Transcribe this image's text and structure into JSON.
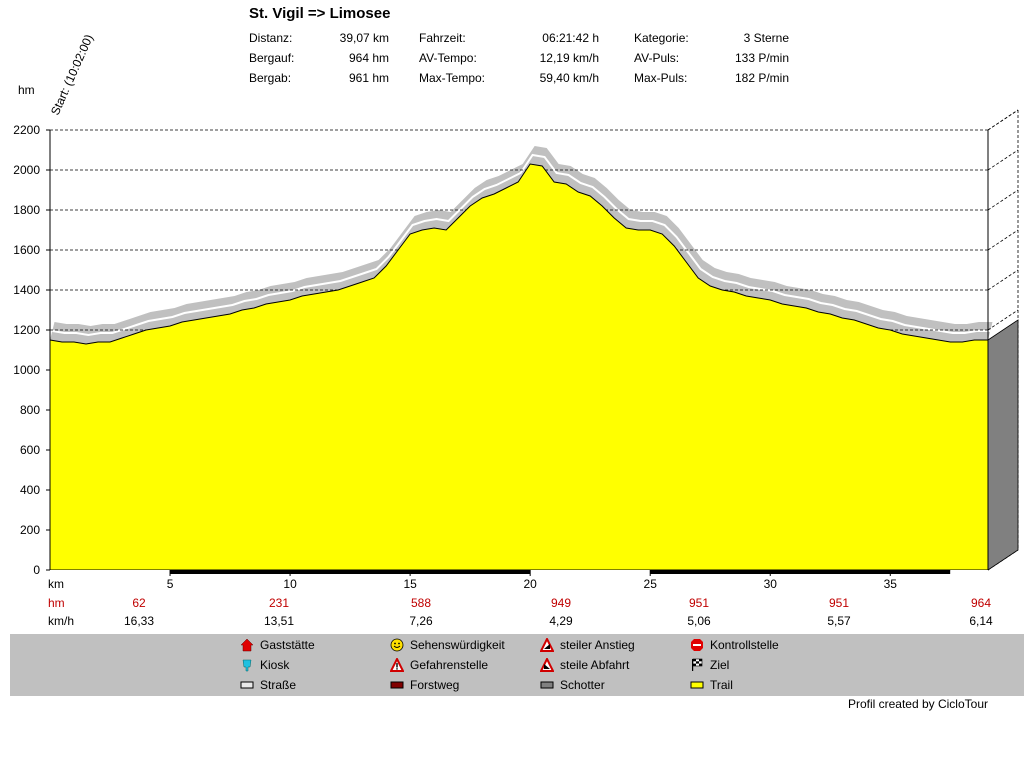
{
  "header": {
    "title": "St. Vigil => Limosee",
    "stats": [
      {
        "label": "Distanz:",
        "value": "39,07 km"
      },
      {
        "label": "Bergauf:",
        "value": "964 hm"
      },
      {
        "label": "Bergab:",
        "value": "961 hm"
      },
      {
        "label": "Fahrzeit:",
        "value": "06:21:42 h"
      },
      {
        "label": "AV-Tempo:",
        "value": "12,19 km/h"
      },
      {
        "label": "Max-Tempo:",
        "value": "59,40 km/h"
      },
      {
        "label": "Kategorie:",
        "value": "3 Sterne"
      },
      {
        "label": "AV-Puls:",
        "value": "133 P/min"
      },
      {
        "label": "Max-Puls:",
        "value": "182 P/min"
      }
    ]
  },
  "chart_data": {
    "type": "area",
    "y_unit_label": "hm",
    "x_unit_label": "km",
    "start_label": "Start: (10:02:00)",
    "ylim": [
      0,
      2200
    ],
    "xlim": [
      0,
      39.07
    ],
    "y_ticks": [
      "0",
      "200",
      "400",
      "600",
      "800",
      "1000",
      "1200",
      "1400",
      "1600",
      "1800",
      "2000",
      "2200"
    ],
    "x_ticks": [
      "5",
      "10",
      "15",
      "20",
      "25",
      "30",
      "35"
    ],
    "grid": true,
    "colors": {
      "trail": "#ffff00",
      "shadow": "#c0c0c0",
      "side": "#808080",
      "track": "#000000"
    },
    "series": [
      {
        "values_x": [
          0,
          0.5,
          1,
          1.5,
          2,
          2.5,
          3,
          3.5,
          4,
          4.5,
          5,
          5.5,
          6,
          6.5,
          7,
          7.5,
          8,
          8.5,
          9,
          9.5,
          10,
          10.5,
          11,
          11.5,
          12,
          12.5,
          13,
          13.5,
          14,
          14.5,
          15,
          15.5,
          16,
          16.5,
          17,
          17.5,
          18,
          18.5,
          19,
          19.5,
          20,
          20.5,
          21,
          21.5,
          22,
          22.5,
          23,
          23.5,
          24,
          24.5,
          25,
          25.5,
          26,
          26.5,
          27,
          27.5,
          28,
          28.5,
          29,
          29.5,
          30,
          30.5,
          31,
          31.5,
          32,
          32.5,
          33,
          33.5,
          34,
          34.5,
          35,
          35.5,
          36,
          36.5,
          37,
          37.5,
          38,
          38.5,
          39,
          39.07
        ],
        "values_y": [
          1150,
          1140,
          1140,
          1130,
          1140,
          1140,
          1160,
          1180,
          1200,
          1210,
          1220,
          1240,
          1250,
          1260,
          1270,
          1280,
          1300,
          1310,
          1330,
          1340,
          1350,
          1370,
          1380,
          1390,
          1400,
          1420,
          1440,
          1460,
          1520,
          1600,
          1680,
          1700,
          1710,
          1700,
          1760,
          1820,
          1860,
          1880,
          1910,
          1940,
          2030,
          2020,
          1940,
          1930,
          1890,
          1870,
          1820,
          1760,
          1710,
          1700,
          1700,
          1680,
          1620,
          1540,
          1460,
          1420,
          1400,
          1390,
          1370,
          1360,
          1350,
          1330,
          1320,
          1310,
          1290,
          1280,
          1260,
          1250,
          1230,
          1210,
          1200,
          1180,
          1170,
          1160,
          1150,
          1140,
          1140,
          1150,
          1150,
          1150
        ]
      }
    ],
    "bottom_rows": {
      "hm_label": "hm",
      "kmh_label": "km/h",
      "hm_values": [
        "62",
        "231",
        "588",
        "949",
        "951",
        "951",
        "964"
      ],
      "kmh_values": [
        "16,33",
        "13,51",
        "7,26",
        "4,29",
        "5,06",
        "5,57",
        "6,14"
      ]
    }
  },
  "legend": [
    {
      "label": "Gaststätte",
      "icon": "house-icon"
    },
    {
      "label": "Kiosk",
      "icon": "kiosk-icon"
    },
    {
      "label": "Straße",
      "icon": "road-swatch-icon"
    },
    {
      "label": "Sehenswürdigkeit",
      "icon": "smiley-icon"
    },
    {
      "label": "Gefahrenstelle",
      "icon": "danger-icon"
    },
    {
      "label": "Forstweg",
      "icon": "forest-road-swatch-icon"
    },
    {
      "label": "steiler Anstieg",
      "icon": "steep-climb-icon"
    },
    {
      "label": "steile Abfahrt",
      "icon": "steep-descent-icon"
    },
    {
      "label": "Schotter",
      "icon": "gravel-swatch-icon"
    },
    {
      "label": "Kontrollstelle",
      "icon": "stop-icon"
    },
    {
      "label": "Ziel",
      "icon": "finish-flag-icon"
    },
    {
      "label": "Trail",
      "icon": "trail-swatch-icon"
    }
  ],
  "footer": {
    "credit": "Profil created by CicloTour"
  }
}
